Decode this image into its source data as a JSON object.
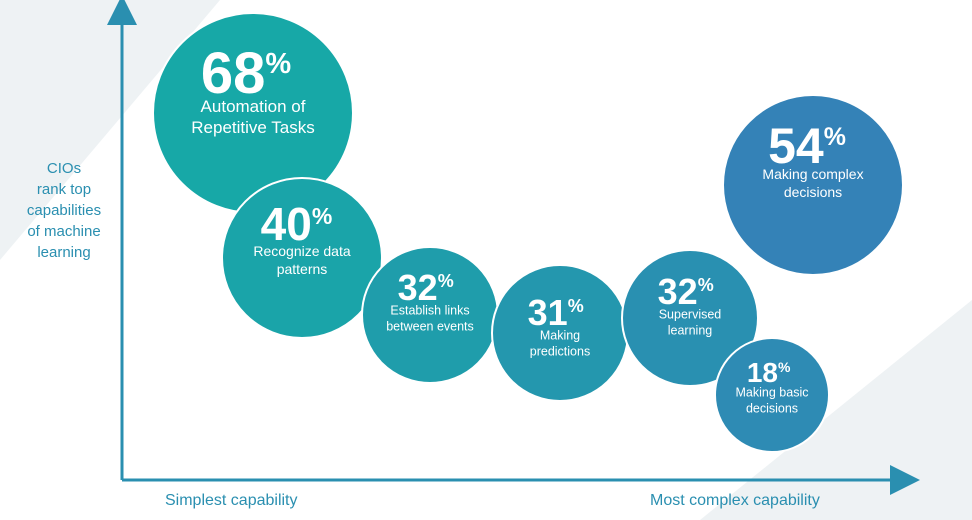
{
  "chart_data": {
    "type": "bubble",
    "ylabel_lines": [
      "CIOs",
      "rank top",
      "capabilities",
      "of machine",
      "learning"
    ],
    "xlabel_left": "Simplest capability",
    "xlabel_right": "Most complex capability",
    "items": [
      {
        "value": 68,
        "value_label": "68",
        "label_lines": [
          "Automation of",
          "Repetitive Tasks"
        ]
      },
      {
        "value": 40,
        "value_label": "40",
        "label_lines": [
          "Recognize data",
          "patterns"
        ]
      },
      {
        "value": 32,
        "value_label": "32",
        "label_lines": [
          "Establish links",
          "between events"
        ]
      },
      {
        "value": 31,
        "value_label": "31",
        "label_lines": [
          "Making",
          "predictions"
        ]
      },
      {
        "value": 32,
        "value_label": "32",
        "label_lines": [
          "Supervised",
          "learning"
        ]
      },
      {
        "value": 18,
        "value_label": "18",
        "label_lines": [
          "Making basic",
          "decisions"
        ]
      },
      {
        "value": 54,
        "value_label": "54",
        "label_lines": [
          "Making complex",
          "decisions"
        ]
      }
    ],
    "colors": {
      "teal": "#15aaa6",
      "blue": "#3680b8",
      "axis": "#2a8fb0",
      "text": "#ffffff"
    }
  }
}
